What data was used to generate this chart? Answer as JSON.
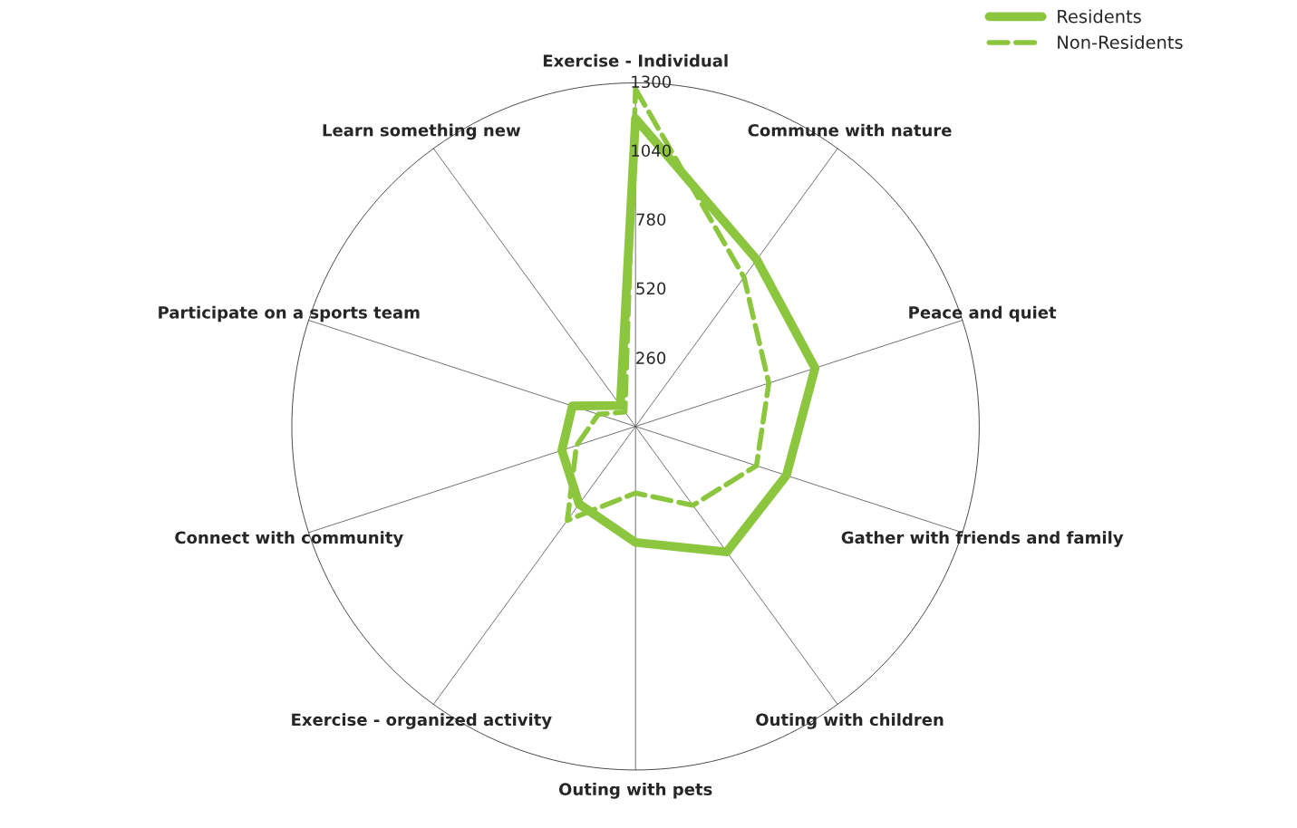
{
  "chart_data": {
    "type": "radar",
    "categories": [
      "Exercise - Individual",
      "Commune with nature",
      "Peace and quiet",
      "Gather with friends and family",
      "Outing with children",
      "Outing with pets",
      "Exercise - organized activity",
      "Connect with community",
      "Participate on a sports team",
      "Learn something new"
    ],
    "series": [
      {
        "name": "Residents",
        "color": "#8cc63f",
        "line_style": "solid",
        "values": [
          1165,
          780,
          714,
          600,
          587,
          439,
          363,
          293,
          251,
          98
        ]
      },
      {
        "name": "Non-Residents",
        "color": "#8cc63f",
        "line_style": "dashed",
        "values": [
          1277,
          698,
          530,
          481,
          369,
          252,
          439,
          235,
          148,
          68
        ]
      }
    ],
    "ylim": [
      0,
      1300
    ],
    "yticks": [
      260,
      520,
      780,
      1040,
      1300
    ],
    "grid": "x",
    "legend": "top right"
  }
}
